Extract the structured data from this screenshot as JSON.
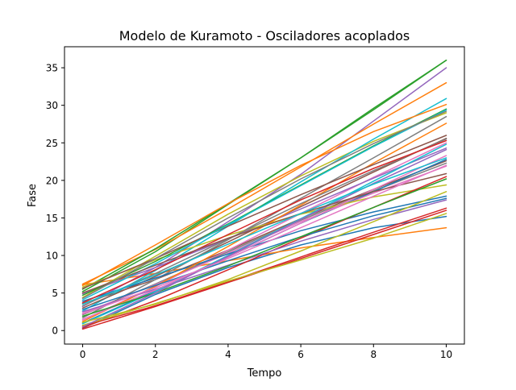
{
  "chart_data": {
    "type": "line",
    "title": "Modelo de Kuramoto - Osciladores acoplados",
    "xlabel": "Tempo",
    "ylabel": "Fase",
    "xlim": [
      -0.5,
      10.5
    ],
    "ylim": [
      -1.8,
      37.8
    ],
    "xticks": [
      0,
      2,
      4,
      6,
      8,
      10
    ],
    "yticks": [
      0,
      5,
      10,
      15,
      20,
      25,
      30,
      35
    ],
    "grid": false,
    "legend": "none",
    "color_cycle": [
      "#1f77b4",
      "#ff7f0e",
      "#2ca02c",
      "#d62728",
      "#9467bd",
      "#8c564b",
      "#e377c2",
      "#7f7f7f",
      "#bcbd22",
      "#17becf"
    ],
    "series": [
      {
        "x": [
          0,
          2,
          4,
          6,
          8,
          10
        ],
        "y": [
          0.3,
          4.8,
          8.4,
          11.4,
          13.7,
          15.2
        ]
      },
      {
        "x": [
          0,
          2,
          4,
          6,
          8,
          10
        ],
        "y": [
          6.1,
          7.6,
          9.3,
          11.0,
          12.4,
          13.7
        ]
      },
      {
        "x": [
          0,
          2,
          4,
          6,
          8,
          10
        ],
        "y": [
          5.2,
          10.5,
          16.8,
          23.0,
          29.4,
          36.0
        ]
      },
      {
        "x": [
          0,
          2,
          4,
          6,
          8,
          10
        ],
        "y": [
          0.2,
          3.2,
          6.4,
          9.6,
          12.8,
          16.0
        ]
      },
      {
        "x": [
          0,
          2,
          4,
          6,
          8,
          10
        ],
        "y": [
          3.2,
          8.4,
          14.5,
          20.8,
          27.9,
          35.0
        ]
      },
      {
        "x": [
          0,
          2,
          4,
          6,
          8,
          10
        ],
        "y": [
          3.6,
          6.8,
          10.7,
          14.9,
          18.8,
          22.6
        ]
      },
      {
        "x": [
          0,
          2,
          4,
          6,
          8,
          10
        ],
        "y": [
          1.4,
          5.9,
          10.7,
          15.6,
          20.4,
          25.0
        ]
      },
      {
        "x": [
          0,
          2,
          4,
          6,
          8,
          10
        ],
        "y": [
          2.1,
          6.2,
          10.5,
          14.7,
          18.6,
          22.3
        ]
      },
      {
        "x": [
          0,
          2,
          4,
          6,
          8,
          10
        ],
        "y": [
          4.4,
          9.9,
          15.5,
          20.6,
          25.2,
          29.0
        ]
      },
      {
        "x": [
          0,
          2,
          4,
          6,
          8,
          10
        ],
        "y": [
          2.6,
          8.0,
          13.9,
          19.8,
          25.5,
          30.9
        ]
      },
      {
        "x": [
          0,
          2,
          4,
          6,
          8,
          10
        ],
        "y": [
          1.0,
          5.3,
          9.8,
          14.3,
          18.5,
          22.8
        ]
      },
      {
        "x": [
          0,
          2,
          4,
          6,
          8,
          10
        ],
        "y": [
          6.2,
          10.8,
          16.2,
          21.8,
          27.5,
          33.0
        ]
      },
      {
        "x": [
          0,
          2,
          4,
          6,
          8,
          10
        ],
        "y": [
          5.5,
          10.9,
          16.9,
          23.0,
          29.6,
          36.0
        ]
      },
      {
        "x": [
          0,
          2,
          4,
          6,
          8,
          10
        ],
        "y": [
          0.6,
          3.3,
          6.5,
          9.8,
          13.1,
          16.3
        ]
      },
      {
        "x": [
          0,
          2,
          4,
          6,
          8,
          10
        ],
        "y": [
          4.9,
          8.4,
          12.2,
          16.2,
          20.3,
          24.3
        ]
      },
      {
        "x": [
          0,
          2,
          4,
          6,
          8,
          10
        ],
        "y": [
          3.0,
          7.2,
          11.8,
          16.5,
          21.1,
          25.6
        ]
      },
      {
        "x": [
          0,
          2,
          4,
          6,
          8,
          10
        ],
        "y": [
          2.3,
          6.1,
          10.3,
          14.5,
          18.3,
          21.9
        ]
      },
      {
        "x": [
          0,
          2,
          4,
          6,
          8,
          10
        ],
        "y": [
          1.7,
          6.8,
          12.1,
          17.6,
          23.0,
          28.5
        ]
      },
      {
        "x": [
          0,
          2,
          4,
          6,
          8,
          10
        ],
        "y": [
          5.8,
          9.4,
          12.7,
          15.5,
          17.8,
          19.4
        ]
      },
      {
        "x": [
          0,
          2,
          4,
          6,
          8,
          10
        ],
        "y": [
          0.9,
          5.2,
          10.0,
          14.9,
          19.9,
          24.8
        ]
      },
      {
        "x": [
          0,
          2,
          4,
          6,
          8,
          10
        ],
        "y": [
          3.9,
          7.0,
          10.2,
          13.3,
          15.8,
          17.9
        ]
      },
      {
        "x": [
          0,
          2,
          4,
          6,
          8,
          10
        ],
        "y": [
          1.2,
          5.9,
          11.2,
          16.7,
          22.3,
          27.6
        ]
      },
      {
        "x": [
          0,
          2,
          4,
          6,
          8,
          10
        ],
        "y": [
          4.7,
          9.2,
          14.2,
          19.4,
          24.6,
          29.5
        ]
      },
      {
        "x": [
          0,
          2,
          4,
          6,
          8,
          10
        ],
        "y": [
          0.4,
          4.0,
          8.1,
          12.3,
          16.4,
          20.5
        ]
      },
      {
        "x": [
          0,
          2,
          4,
          6,
          8,
          10
        ],
        "y": [
          2.5,
          5.5,
          8.7,
          11.9,
          14.8,
          17.4
        ]
      },
      {
        "x": [
          0,
          2,
          4,
          6,
          8,
          10
        ],
        "y": [
          5.6,
          9.6,
          13.9,
          18.1,
          22.1,
          26.0
        ]
      },
      {
        "x": [
          0,
          2,
          4,
          6,
          8,
          10
        ],
        "y": [
          1.5,
          5.4,
          9.8,
          14.3,
          18.8,
          23.3
        ]
      },
      {
        "x": [
          0,
          2,
          4,
          6,
          8,
          10
        ],
        "y": [
          3.3,
          7.6,
          12.2,
          16.9,
          21.3,
          25.5
        ]
      },
      {
        "x": [
          0,
          2,
          4,
          6,
          8,
          10
        ],
        "y": [
          0.7,
          3.6,
          6.6,
          9.4,
          12.3,
          15.6
        ]
      },
      {
        "x": [
          0,
          2,
          4,
          6,
          8,
          10
        ],
        "y": [
          4.1,
          8.9,
          14.1,
          19.3,
          24.5,
          29.4
        ]
      },
      {
        "x": [
          0,
          2,
          4,
          6,
          8,
          10
        ],
        "y": [
          2.8,
          6.0,
          9.3,
          12.5,
          15.3,
          17.6
        ]
      },
      {
        "x": [
          0,
          2,
          4,
          6,
          8,
          10
        ],
        "y": [
          6.0,
          11.4,
          16.9,
          22.0,
          26.5,
          30.1
        ]
      },
      {
        "x": [
          0,
          2,
          4,
          6,
          8,
          10
        ],
        "y": [
          1.9,
          5.0,
          8.6,
          12.5,
          16.4,
          20.2
        ]
      },
      {
        "x": [
          0,
          2,
          4,
          6,
          8,
          10
        ],
        "y": [
          3.7,
          8.1,
          12.8,
          17.4,
          21.6,
          25.3
        ]
      },
      {
        "x": [
          0,
          2,
          4,
          6,
          8,
          10
        ],
        "y": [
          0.5,
          5.0,
          9.9,
          14.8,
          19.6,
          24.1
        ]
      },
      {
        "x": [
          0,
          2,
          4,
          6,
          8,
          10
        ],
        "y": [
          5.0,
          8.7,
          12.3,
          15.6,
          18.5,
          20.9
        ]
      },
      {
        "x": [
          0,
          2,
          4,
          6,
          8,
          10
        ],
        "y": [
          2.2,
          5.7,
          9.6,
          13.7,
          17.9,
          22.0
        ]
      },
      {
        "x": [
          0,
          2,
          4,
          6,
          8,
          10
        ],
        "y": [
          4.3,
          9.6,
          15.0,
          20.2,
          24.9,
          29.2
        ]
      },
      {
        "x": [
          0,
          2,
          4,
          6,
          8,
          10
        ],
        "y": [
          1.1,
          3.5,
          6.8,
          10.6,
          14.5,
          18.5
        ]
      },
      {
        "x": [
          0,
          2,
          4,
          6,
          8,
          10
        ],
        "y": [
          3.5,
          7.4,
          11.5,
          15.6,
          19.5,
          23.0
        ]
      }
    ]
  }
}
